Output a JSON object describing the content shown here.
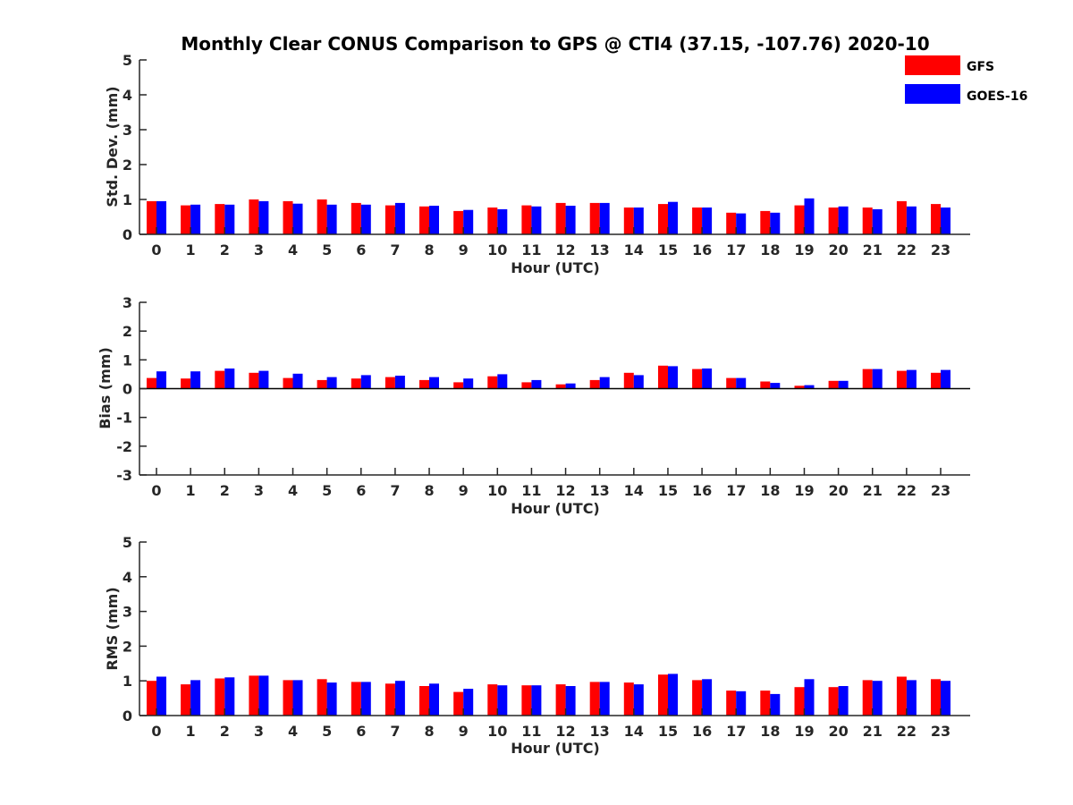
{
  "title": "Monthly Clear CONUS Comparison to GPS @ CTI4 (37.15, -107.76) 2020-10",
  "legend": [
    {
      "name": "GFS",
      "color": "#ff0000"
    },
    {
      "name": "GOES-16",
      "color": "#0000ff"
    }
  ],
  "chart_data": [
    {
      "type": "bar",
      "ylabel": "Std. Dev. (mm)",
      "xlabel": "Hour (UTC)",
      "ylim": [
        0,
        5
      ],
      "yticks": [
        0,
        1,
        2,
        3,
        4,
        5
      ],
      "categories": [
        "0",
        "1",
        "2",
        "3",
        "4",
        "5",
        "6",
        "7",
        "8",
        "9",
        "10",
        "11",
        "12",
        "13",
        "14",
        "15",
        "16",
        "17",
        "18",
        "19",
        "20",
        "21",
        "22",
        "23"
      ],
      "series": [
        {
          "name": "GFS",
          "color": "#ff0000",
          "values": [
            0.95,
            0.83,
            0.87,
            1.0,
            0.95,
            1.0,
            0.9,
            0.83,
            0.8,
            0.67,
            0.77,
            0.83,
            0.9,
            0.9,
            0.77,
            0.87,
            0.77,
            0.62,
            0.67,
            0.83,
            0.77,
            0.77,
            0.95,
            0.87
          ]
        },
        {
          "name": "GOES-16",
          "color": "#0000ff",
          "values": [
            0.95,
            0.85,
            0.85,
            0.95,
            0.88,
            0.85,
            0.85,
            0.9,
            0.82,
            0.7,
            0.72,
            0.8,
            0.82,
            0.9,
            0.77,
            0.93,
            0.77,
            0.6,
            0.62,
            1.03,
            0.8,
            0.72,
            0.8,
            0.77
          ]
        }
      ]
    },
    {
      "type": "bar",
      "ylabel": "Bias (mm)",
      "xlabel": "Hour (UTC)",
      "ylim": [
        -3,
        3
      ],
      "yticks": [
        -3,
        -2,
        -1,
        0,
        1,
        2,
        3
      ],
      "categories": [
        "0",
        "1",
        "2",
        "3",
        "4",
        "5",
        "6",
        "7",
        "8",
        "9",
        "10",
        "11",
        "12",
        "13",
        "14",
        "15",
        "16",
        "17",
        "18",
        "19",
        "20",
        "21",
        "22",
        "23"
      ],
      "series": [
        {
          "name": "GFS",
          "color": "#ff0000",
          "values": [
            0.37,
            0.35,
            0.62,
            0.55,
            0.37,
            0.3,
            0.35,
            0.4,
            0.3,
            0.22,
            0.43,
            0.22,
            0.15,
            0.3,
            0.55,
            0.8,
            0.68,
            0.37,
            0.25,
            0.1,
            0.27,
            0.68,
            0.62,
            0.55
          ]
        },
        {
          "name": "GOES-16",
          "color": "#0000ff",
          "values": [
            0.6,
            0.6,
            0.7,
            0.62,
            0.52,
            0.4,
            0.47,
            0.45,
            0.4,
            0.35,
            0.5,
            0.3,
            0.18,
            0.4,
            0.47,
            0.78,
            0.7,
            0.37,
            0.2,
            0.12,
            0.27,
            0.68,
            0.65,
            0.65
          ]
        }
      ]
    },
    {
      "type": "bar",
      "ylabel": "RMS (mm)",
      "xlabel": "Hour (UTC)",
      "ylim": [
        0,
        5
      ],
      "yticks": [
        0,
        1,
        2,
        3,
        4,
        5
      ],
      "categories": [
        "0",
        "1",
        "2",
        "3",
        "4",
        "5",
        "6",
        "7",
        "8",
        "9",
        "10",
        "11",
        "12",
        "13",
        "14",
        "15",
        "16",
        "17",
        "18",
        "19",
        "20",
        "21",
        "22",
        "23"
      ],
      "series": [
        {
          "name": "GFS",
          "color": "#ff0000",
          "values": [
            1.0,
            0.9,
            1.07,
            1.15,
            1.02,
            1.05,
            0.97,
            0.92,
            0.85,
            0.68,
            0.9,
            0.87,
            0.9,
            0.97,
            0.95,
            1.18,
            1.02,
            0.72,
            0.72,
            0.82,
            0.82,
            1.02,
            1.12,
            1.05
          ]
        },
        {
          "name": "GOES-16",
          "color": "#0000ff",
          "values": [
            1.12,
            1.02,
            1.1,
            1.15,
            1.02,
            0.95,
            0.97,
            1.0,
            0.92,
            0.77,
            0.87,
            0.87,
            0.85,
            0.97,
            0.9,
            1.2,
            1.05,
            0.7,
            0.62,
            1.05,
            0.85,
            1.0,
            1.02,
            1.0
          ]
        }
      ]
    }
  ]
}
